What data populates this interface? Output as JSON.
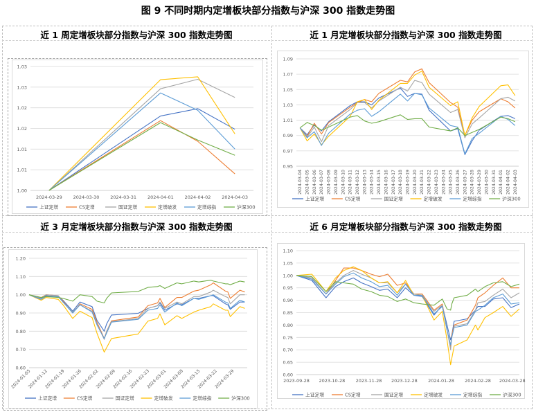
{
  "figure_title": "图 9  不同时期内定增板块部分指数与沪深 300 指数走势图",
  "panel_titles": [
    "近 1 周定增板块部分指数与沪深 300 指数走势图",
    "近 1 月定增板块部分指数与沪深 300 指数走势图",
    "近 3 月定增板块部分指数与沪深 300 指数走势图",
    "近 6 月定增板块部分指数与沪深 300 指数走势图"
  ],
  "colors": {
    "上证定增": "#4472C4",
    "CS定增": "#ED7D31",
    "国证定增": "#A5A5A5",
    "定增破发": "#FFC000",
    "定增综指": "#5B9BD5",
    "沪深300": "#70AD47"
  },
  "chart_data": [
    {
      "type": "line",
      "title": "近 1 周定增板块部分指数与沪深 300 指数走势图",
      "legend": "bottom",
      "grid": true,
      "ylim": [
        1.0,
        1.03
      ],
      "yticks": [
        1.0,
        1.005,
        1.01,
        1.015,
        1.02,
        1.025,
        1.03
      ],
      "ytick_labels": [
        "1.00",
        "1.01",
        "1.01",
        "1.02",
        "1.02",
        "1.03",
        "1.03"
      ],
      "categories": [
        "2024-03-29",
        "2024-03-30",
        "2024-03-31",
        "2024-04-01",
        "2024-04-02",
        "2024-04-03"
      ],
      "series": [
        {
          "name": "上证定增",
          "values": [
            1.0,
            null,
            null,
            1.018,
            1.0198,
            1.0148
          ]
        },
        {
          "name": "CS定增",
          "values": [
            1.0,
            null,
            null,
            1.0169,
            1.0119,
            1.004
          ]
        },
        {
          "name": "国证定增",
          "values": [
            1.0,
            null,
            null,
            1.0246,
            1.0269,
            1.0225
          ]
        },
        {
          "name": "定增破发",
          "values": [
            1.0,
            null,
            null,
            1.0268,
            1.0275,
            1.0137
          ]
        },
        {
          "name": "定增综指",
          "values": [
            1.0,
            null,
            null,
            1.0236,
            1.0194,
            1.01
          ]
        },
        {
          "name": "沪深300",
          "values": [
            1.0,
            null,
            null,
            1.0164,
            1.0122,
            1.0085
          ]
        }
      ]
    },
    {
      "type": "line",
      "title": "近 1 月定增板块部分指数与沪深 300 指数走势图",
      "legend": "bottom",
      "grid": true,
      "ylim": [
        0.95,
        1.09
      ],
      "yticks": [
        0.95,
        0.97,
        0.99,
        1.01,
        1.03,
        1.05,
        1.07,
        1.09
      ],
      "ytick_labels": [
        "0.95",
        "0.97",
        "0.99",
        "1.01",
        "1.03",
        "1.05",
        "1.07",
        "1.09"
      ],
      "categories": [
        "2024-03-04",
        "2024-03-05",
        "2024-03-06",
        "2024-03-07",
        "2024-03-08",
        "2024-03-09",
        "2024-03-10",
        "2024-03-11",
        "2024-03-12",
        "2024-03-13",
        "2024-03-14",
        "2024-03-15",
        "2024-03-16",
        "2024-03-17",
        "2024-03-18",
        "2024-03-19",
        "2024-03-20",
        "2024-03-21",
        "2024-03-22",
        "2024-03-23",
        "2024-03-24",
        "2024-03-25",
        "2024-03-26",
        "2024-03-27",
        "2024-03-28",
        "2024-03-29",
        "2024-03-30",
        "2024-03-31",
        "2024-04-01",
        "2024-04-02",
        "2024-04-03"
      ],
      "series": [
        {
          "name": "上证定增",
          "values": [
            1.0,
            0.991,
            1.004,
            0.996,
            1.008,
            null,
            null,
            1.029,
            1.034,
            1.034,
            1.03,
            1.039,
            null,
            null,
            1.052,
            1.041,
            1.045,
            1.044,
            1.023,
            null,
            null,
            0.996,
            0.999,
            0.965,
            0.983,
            0.997,
            null,
            null,
            1.015,
            1.016,
            1.012
          ]
        },
        {
          "name": "CS定增",
          "values": [
            1.0,
            0.989,
            1.006,
            0.992,
            1.007,
            null,
            null,
            1.027,
            1.033,
            1.037,
            1.034,
            1.045,
            null,
            null,
            1.062,
            1.06,
            1.073,
            1.077,
            1.059,
            null,
            null,
            1.033,
            1.027,
            0.99,
            1.01,
            1.021,
            null,
            null,
            1.038,
            1.034,
            1.026
          ]
        },
        {
          "name": "国证定增",
          "values": [
            1.0,
            0.988,
            1.001,
            0.982,
            1.003,
            null,
            null,
            1.024,
            1.033,
            1.033,
            1.026,
            1.035,
            null,
            null,
            1.053,
            1.048,
            1.062,
            1.059,
            1.044,
            null,
            null,
            1.02,
            1.024,
            0.987,
            1.005,
            1.013,
            null,
            null,
            1.038,
            1.04,
            1.035
          ]
        },
        {
          "name": "定增破发",
          "values": [
            1.0,
            0.983,
            0.992,
            0.978,
            0.989,
            null,
            null,
            1.015,
            1.034,
            1.037,
            1.024,
            1.036,
            null,
            null,
            1.058,
            1.058,
            1.069,
            1.074,
            1.053,
            null,
            null,
            1.029,
            1.034,
            0.99,
            1.013,
            1.028,
            null,
            null,
            1.055,
            1.056,
            1.042
          ]
        },
        {
          "name": "定增综指",
          "values": [
            1.0,
            0.987,
            0.995,
            0.977,
            0.993,
            null,
            null,
            1.018,
            1.023,
            1.025,
            1.015,
            1.021,
            null,
            null,
            1.044,
            1.035,
            1.045,
            1.043,
            1.026,
            null,
            null,
            1.003,
            1.001,
            0.966,
            0.986,
            0.993,
            null,
            null,
            1.015,
            1.011,
            1.003
          ]
        },
        {
          "name": "沪深300",
          "values": [
            1.0,
            1.007,
            1.003,
            0.997,
            1.001,
            null,
            null,
            1.014,
            1.016,
            1.009,
            1.006,
            1.008,
            null,
            null,
            1.017,
            1.011,
            1.012,
            1.012,
            1.001,
            null,
            null,
            0.996,
            1.0,
            0.99,
            0.994,
            0.998,
            null,
            null,
            1.014,
            1.012,
            1.008
          ]
        }
      ]
    },
    {
      "type": "line",
      "title": "近 3 月定增板块部分指数与沪深 300 指数走势图",
      "legend": "bottom",
      "grid": true,
      "ylim": [
        0.6,
        1.2
      ],
      "yticks": [
        0.6,
        0.7,
        0.8,
        0.9,
        1.0,
        1.1,
        1.2
      ],
      "ytick_labels": [
        "0.60",
        "0.70",
        "0.80",
        "0.90",
        "1.00",
        "1.10",
        "1.20"
      ],
      "xlim": [
        "2024-01-05",
        "2024-04-04"
      ],
      "xticks": [
        "2024-01-05",
        "2024-01-12",
        "2024-01-19",
        "2024-01-26",
        "2024-02-02",
        "2024-02-09",
        "2024-02-16",
        "2024-02-23",
        "2024-03-01",
        "2024-03-08",
        "2024-03-15",
        "2024-03-22",
        "2024-03-29"
      ],
      "x": [
        "2024-01-05",
        "2024-01-10",
        "2024-01-12",
        "2024-01-17",
        "2024-01-19",
        "2024-01-23",
        "2024-01-26",
        "2024-01-31",
        "2024-02-02",
        "2024-02-05",
        "2024-02-06",
        "2024-02-08",
        "2024-02-19",
        "2024-02-23",
        "2024-02-27",
        "2024-02-28",
        "2024-03-01",
        "2024-03-06",
        "2024-03-08",
        "2024-03-13",
        "2024-03-15",
        "2024-03-20",
        "2024-03-21",
        "2024-03-26",
        "2024-03-27",
        "2024-03-28",
        "2024-04-01",
        "2024-04-03"
      ],
      "series": [
        {
          "name": "上证定增",
          "values": [
            1.0,
            0.98,
            0.995,
            0.99,
            0.97,
            0.91,
            0.96,
            0.935,
            0.86,
            0.8,
            0.84,
            0.889,
            0.898,
            0.925,
            0.94,
            0.955,
            0.915,
            0.95,
            0.945,
            0.98,
            0.98,
            0.995,
            0.995,
            0.95,
            0.945,
            0.92,
            0.96,
            0.96
          ]
        },
        {
          "name": "CS定增",
          "values": [
            1.0,
            0.985,
            1.0,
            0.995,
            0.965,
            0.9,
            0.95,
            0.92,
            0.85,
            0.76,
            0.8,
            0.857,
            0.878,
            0.94,
            0.955,
            0.98,
            0.93,
            0.985,
            0.985,
            1.02,
            1.025,
            1.055,
            1.065,
            1.02,
            1.015,
            0.98,
            1.025,
            1.015
          ]
        },
        {
          "name": "国证定增",
          "values": [
            1.0,
            0.982,
            1.0,
            0.995,
            0.96,
            0.905,
            0.945,
            0.91,
            0.84,
            0.755,
            0.8,
            0.852,
            0.87,
            0.925,
            0.94,
            0.96,
            0.925,
            0.96,
            0.95,
            0.99,
            0.99,
            1.015,
            1.025,
            0.99,
            0.985,
            0.95,
            1.0,
            1.0
          ]
        },
        {
          "name": "定增破发",
          "values": [
            1.0,
            0.97,
            0.985,
            0.975,
            0.945,
            0.87,
            0.91,
            0.875,
            0.79,
            0.685,
            0.71,
            0.76,
            0.785,
            0.855,
            0.87,
            0.895,
            0.835,
            0.885,
            0.87,
            0.905,
            0.915,
            0.935,
            0.95,
            0.915,
            0.915,
            0.88,
            0.935,
            0.925
          ]
        },
        {
          "name": "定增综指",
          "values": [
            1.0,
            0.975,
            0.99,
            0.99,
            0.96,
            0.9,
            0.945,
            0.905,
            0.835,
            0.76,
            0.79,
            0.85,
            0.865,
            0.915,
            0.925,
            0.945,
            0.905,
            0.955,
            0.94,
            0.98,
            0.975,
            0.995,
            1.0,
            0.96,
            0.955,
            0.925,
            0.97,
            0.96
          ]
        },
        {
          "name": "沪深300",
          "values": [
            1.0,
            0.985,
            0.99,
            0.985,
            0.98,
            0.965,
            1.0,
            0.99,
            0.965,
            0.955,
            0.98,
            1.01,
            1.018,
            1.04,
            1.045,
            1.05,
            1.035,
            1.065,
            1.06,
            1.075,
            1.07,
            1.08,
            1.075,
            1.06,
            1.06,
            1.055,
            1.075,
            1.07
          ]
        }
      ]
    },
    {
      "type": "line",
      "title": "近 6 月定增板块部分指数与沪深 300 指数走势图",
      "legend": "bottom",
      "grid": true,
      "ylim": [
        0.6,
        1.1
      ],
      "yticks": [
        0.6,
        0.65,
        0.7,
        0.75,
        0.8,
        0.85,
        0.9,
        0.95,
        1.0,
        1.05,
        1.1
      ],
      "ytick_labels": [
        "0.60",
        "0.65",
        "0.70",
        "0.75",
        "0.80",
        "0.85",
        "0.90",
        "0.95",
        "1.00",
        "1.05",
        "1.10"
      ],
      "xlim": [
        "2023-09-28",
        "2024-04-03"
      ],
      "xticks": [
        "2023-09-28",
        "2023-10-28",
        "2023-11-28",
        "2023-12-28",
        "2024-01-28",
        "2024-02-28",
        "2024-03-28"
      ],
      "x": [
        "2023-09-28",
        "2023-10-11",
        "2023-10-23",
        "2023-10-31",
        "2023-11-07",
        "2023-11-15",
        "2023-11-22",
        "2023-11-30",
        "2023-12-07",
        "2023-12-14",
        "2023-12-22",
        "2023-12-29",
        "2024-01-05",
        "2024-01-12",
        "2024-01-22",
        "2024-01-29",
        "2024-02-02",
        "2024-02-05",
        "2024-02-06",
        "2024-02-08",
        "2024-02-19",
        "2024-02-26",
        "2024-02-28",
        "2024-03-05",
        "2024-03-12",
        "2024-03-20",
        "2024-03-27",
        "2024-04-03"
      ],
      "series": [
        {
          "name": "上证定增",
          "values": [
            1.0,
            0.98,
            0.91,
            0.955,
            0.975,
            0.99,
            0.97,
            0.955,
            0.94,
            0.945,
            0.91,
            0.95,
            0.92,
            0.915,
            0.84,
            0.88,
            0.8,
            0.74,
            0.76,
            0.815,
            0.825,
            0.86,
            0.875,
            0.875,
            0.905,
            0.91,
            0.87,
            0.885
          ]
        },
        {
          "name": "CS定增",
          "values": [
            1.0,
            0.99,
            0.925,
            0.98,
            1.03,
            1.03,
            1.02,
            1.005,
            0.995,
            1.005,
            0.96,
            0.97,
            0.925,
            0.925,
            0.86,
            0.885,
            0.78,
            0.71,
            0.76,
            0.8,
            0.82,
            0.88,
            0.91,
            0.93,
            0.96,
            0.99,
            0.95,
            0.95
          ]
        },
        {
          "name": "国证定增",
          "values": [
            1.0,
            0.99,
            0.925,
            0.97,
            1.0,
            1.02,
            1.005,
            0.99,
            0.97,
            0.97,
            0.93,
            0.965,
            0.925,
            0.92,
            0.855,
            0.88,
            0.785,
            0.7,
            0.75,
            0.795,
            0.805,
            0.86,
            0.89,
            0.895,
            0.92,
            0.945,
            0.91,
            0.93
          ]
        },
        {
          "name": "定增破发",
          "values": [
            1.0,
            1.005,
            0.935,
            0.99,
            1.02,
            1.035,
            1.02,
            0.99,
            0.97,
            0.975,
            0.93,
            0.98,
            0.92,
            0.92,
            0.82,
            0.855,
            0.74,
            0.64,
            0.665,
            0.715,
            0.74,
            0.8,
            0.78,
            0.83,
            0.85,
            0.875,
            0.835,
            0.865
          ]
        },
        {
          "name": "定增综指",
          "values": [
            1.0,
            0.985,
            0.925,
            0.965,
            0.995,
            1.01,
            0.99,
            0.975,
            0.955,
            0.96,
            0.92,
            0.965,
            0.92,
            0.92,
            0.845,
            0.875,
            0.78,
            0.72,
            0.75,
            0.79,
            0.8,
            0.855,
            0.86,
            0.88,
            0.91,
            0.925,
            0.885,
            0.89
          ]
        },
        {
          "name": "沪深300",
          "values": [
            1.0,
            0.995,
            0.935,
            0.975,
            0.97,
            0.965,
            0.945,
            0.935,
            0.92,
            0.915,
            0.895,
            0.905,
            0.89,
            0.885,
            0.88,
            0.905,
            0.865,
            0.86,
            0.885,
            0.91,
            0.92,
            0.945,
            0.935,
            0.955,
            0.97,
            0.975,
            0.955,
            0.965
          ]
        }
      ]
    }
  ]
}
